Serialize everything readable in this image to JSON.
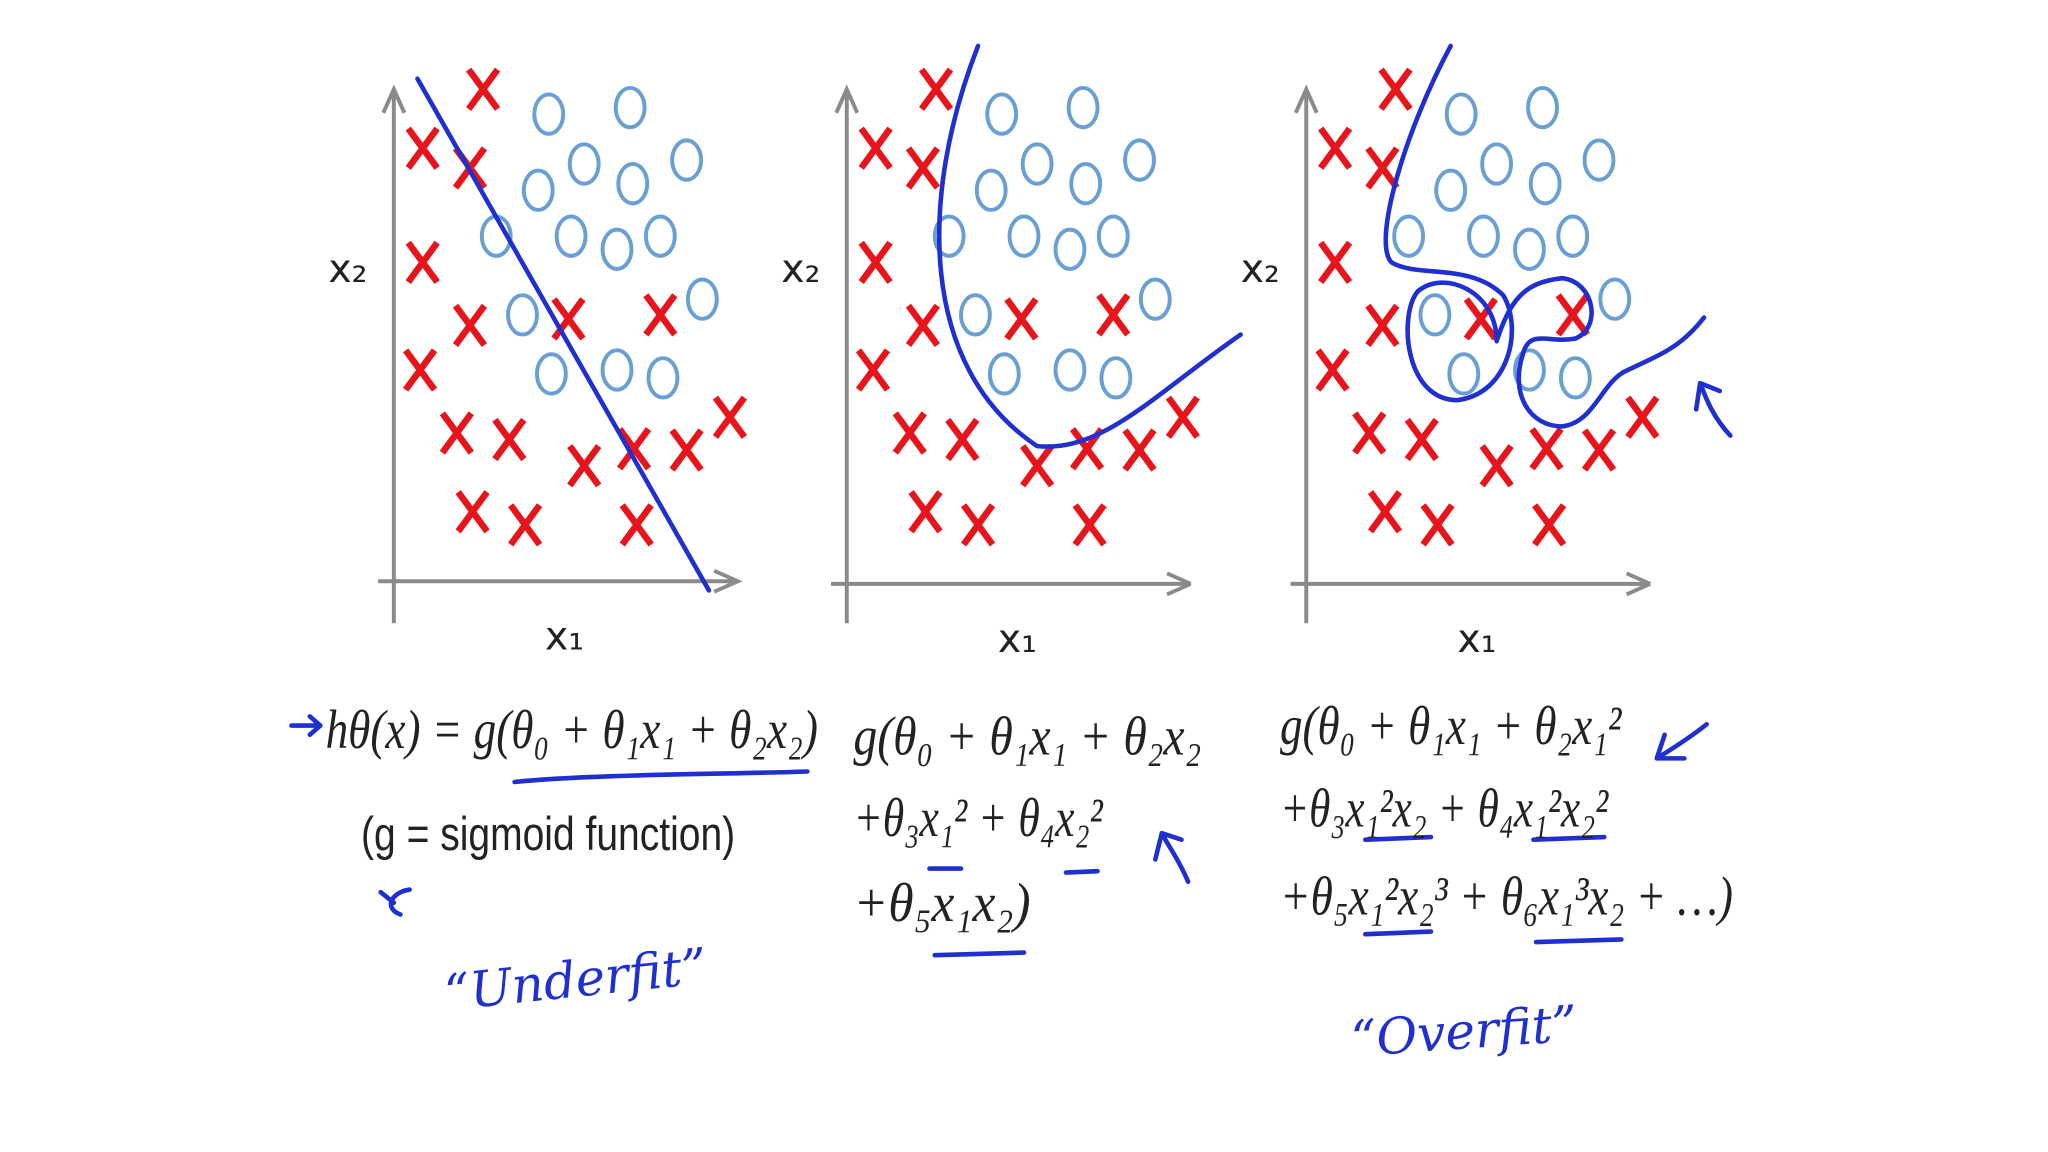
{
  "panels": [
    {
      "y_label": "x₂",
      "x_label": "x₁",
      "formula": [
        "hθ(x) = g(θ₀ + θ₁x₁ + θ₂x₂)"
      ],
      "note": "(g = sigmoid function)",
      "caption": "“Underfit”"
    },
    {
      "y_label": "x₂",
      "x_label": "x₁",
      "formula": [
        "g(θ₀ + θ₁x₁ + θ₂x₂",
        "+θ₃x₁² + θ₄x₂²",
        "+θ₅x₁x₂)"
      ]
    },
    {
      "y_label": "x₂",
      "x_label": "x₁",
      "formula": [
        "g(θ₀ + θ₁x₁ + θ₂x₁²",
        "+θ₃x₁²x₂ + θ₄x₁²x₂²",
        "+θ₅x₁²x₂³ + θ₆x₁³x₂ + …)"
      ],
      "caption": "“Overfit”"
    }
  ]
}
